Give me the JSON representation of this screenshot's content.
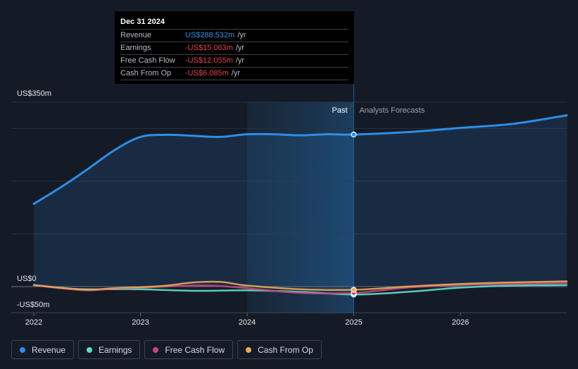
{
  "tooltip": {
    "date": "Dec 31 2024",
    "rows": [
      {
        "label": "Revenue",
        "value": "US$288.532m",
        "unit": "/yr",
        "color": "#2d8ee6"
      },
      {
        "label": "Earnings",
        "value": "-US$15.063m",
        "unit": "/yr",
        "color": "#e8404c"
      },
      {
        "label": "Free Cash Flow",
        "value": "-US$12.055m",
        "unit": "/yr",
        "color": "#e8404c"
      },
      {
        "label": "Cash From Op",
        "value": "-US$6.085m",
        "unit": "/yr",
        "color": "#e8404c"
      }
    ]
  },
  "legend": [
    {
      "label": "Revenue",
      "color": "#2d8ee6"
    },
    {
      "label": "Earnings",
      "color": "#5ce0c8"
    },
    {
      "label": "Free Cash Flow",
      "color": "#c8467e"
    },
    {
      "label": "Cash From Op",
      "color": "#e8a857"
    }
  ],
  "chart_data": {
    "type": "line",
    "ylim": [
      -50,
      350
    ],
    "y_tick_labels": [
      {
        "value": 350,
        "label": "US$350m"
      },
      {
        "value": 0,
        "label": "US$0"
      },
      {
        "value": -50,
        "label": "-US$50m"
      }
    ],
    "x_tick_labels": [
      {
        "value": 2022.0,
        "label": "2022"
      },
      {
        "value": 2023.0,
        "label": "2023"
      },
      {
        "value": 2024.0,
        "label": "2024"
      },
      {
        "value": 2025.0,
        "label": "2025"
      },
      {
        "value": 2026.0,
        "label": "2026"
      }
    ],
    "xlim": [
      2021.78,
      2027.0
    ],
    "divider_x": 2025.0,
    "shaded_past_start": 2024.0,
    "past_label": "Past",
    "forecast_label": "Analysts Forecasts",
    "series": [
      {
        "name": "Revenue",
        "color": "#2d8ee6",
        "points": [
          [
            2022.0,
            157
          ],
          [
            2022.25,
            188
          ],
          [
            2022.5,
            222
          ],
          [
            2022.75,
            258
          ],
          [
            2023.0,
            284
          ],
          [
            2023.25,
            288
          ],
          [
            2023.5,
            286
          ],
          [
            2023.75,
            284
          ],
          [
            2024.0,
            289
          ],
          [
            2024.25,
            289
          ],
          [
            2024.5,
            287
          ],
          [
            2024.75,
            289
          ],
          [
            2025.0,
            288.5
          ],
          [
            2025.5,
            293
          ],
          [
            2026.0,
            301
          ],
          [
            2026.5,
            309
          ],
          [
            2027.0,
            325
          ]
        ]
      },
      {
        "name": "Earnings",
        "color": "#5ce0c8",
        "points": [
          [
            2022.0,
            3
          ],
          [
            2022.25,
            -3
          ],
          [
            2022.5,
            -5
          ],
          [
            2022.75,
            -5
          ],
          [
            2023.0,
            -5
          ],
          [
            2023.5,
            -8
          ],
          [
            2024.0,
            -7
          ],
          [
            2024.5,
            -10
          ],
          [
            2025.0,
            -15
          ],
          [
            2025.5,
            -10
          ],
          [
            2026.0,
            -2
          ],
          [
            2026.5,
            2
          ],
          [
            2027.0,
            3
          ]
        ]
      },
      {
        "name": "Free Cash Flow",
        "color": "#c8467e",
        "points": [
          [
            2022.0,
            3
          ],
          [
            2022.25,
            -3
          ],
          [
            2022.5,
            -7
          ],
          [
            2022.75,
            -4
          ],
          [
            2023.0,
            -2
          ],
          [
            2023.5,
            2
          ],
          [
            2023.75,
            1
          ],
          [
            2024.0,
            -3
          ],
          [
            2024.5,
            -12
          ],
          [
            2025.0,
            -12
          ],
          [
            2025.5,
            -2
          ],
          [
            2026.0,
            3
          ],
          [
            2026.5,
            5
          ],
          [
            2027.0,
            7
          ]
        ]
      },
      {
        "name": "Cash From Op",
        "color": "#e8a857",
        "points": [
          [
            2022.0,
            3
          ],
          [
            2022.25,
            -2
          ],
          [
            2022.5,
            -6
          ],
          [
            2022.75,
            -3
          ],
          [
            2023.0,
            -1
          ],
          [
            2023.25,
            2
          ],
          [
            2023.5,
            8
          ],
          [
            2023.75,
            9
          ],
          [
            2024.0,
            2
          ],
          [
            2024.5,
            -5
          ],
          [
            2025.0,
            -6
          ],
          [
            2025.5,
            0
          ],
          [
            2026.0,
            5
          ],
          [
            2026.5,
            8
          ],
          [
            2027.0,
            10
          ]
        ]
      }
    ]
  }
}
